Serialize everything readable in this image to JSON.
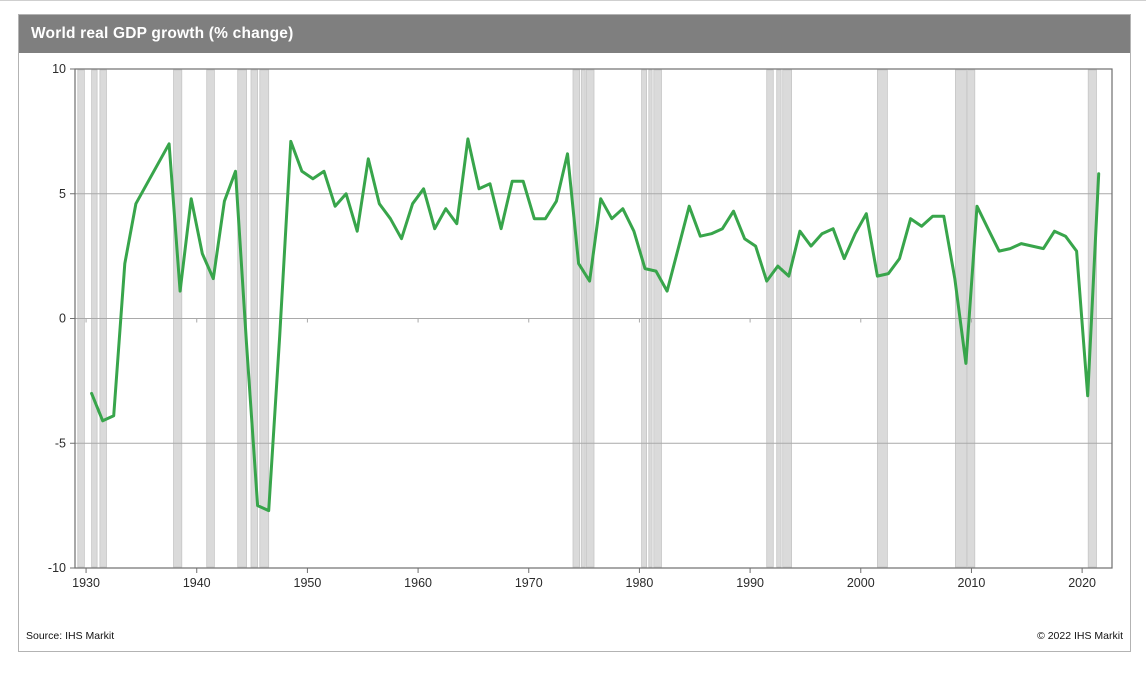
{
  "header": {
    "title": "World real GDP growth (% change)"
  },
  "footer": {
    "source": "Source:  IHS Markit",
    "copyright": "© 2022  IHS Markit"
  },
  "colors": {
    "titlebar_bg": "#7f7f7f",
    "title_text": "#ffffff",
    "line": "#38a54b",
    "recession_band_fill": "#dadada",
    "recession_band_edge": "#c6c6c6",
    "gridline": "#a9a9a9",
    "plot_border": "#6f6f6f",
    "axis_tick": "#6f6f6f",
    "axis_label": "#2b2b2b"
  },
  "chart_data": {
    "type": "line",
    "title": "World real GDP growth (% change)",
    "xlabel": "",
    "ylabel": "",
    "ylim": [
      -10,
      10
    ],
    "xlim": [
      1928.5,
      2022.2
    ],
    "grid": "horizontal",
    "legend_position": "none",
    "y_ticks": [
      10,
      5,
      0,
      -5,
      -10
    ],
    "x_ticks": [
      1930,
      1940,
      1950,
      1960,
      1970,
      1980,
      1990,
      2000,
      2010,
      2020
    ],
    "series": [
      {
        "name": "World real GDP growth (% change)",
        "years": [
          1930,
          1931,
          1932,
          1933,
          1934,
          1935,
          1936,
          1937,
          1938,
          1939,
          1940,
          1941,
          1942,
          1943,
          1944,
          1945,
          1946,
          1947,
          1948,
          1949,
          1950,
          1951,
          1952,
          1953,
          1954,
          1955,
          1956,
          1957,
          1958,
          1959,
          1960,
          1961,
          1962,
          1963,
          1964,
          1965,
          1966,
          1967,
          1968,
          1969,
          1970,
          1971,
          1972,
          1973,
          1974,
          1975,
          1976,
          1977,
          1978,
          1979,
          1980,
          1981,
          1982,
          1983,
          1984,
          1985,
          1986,
          1987,
          1988,
          1989,
          1990,
          1991,
          1992,
          1993,
          1994,
          1995,
          1996,
          1997,
          1998,
          1999,
          2000,
          2001,
          2002,
          2003,
          2004,
          2005,
          2006,
          2007,
          2008,
          2009,
          2010,
          2011,
          2012,
          2013,
          2014,
          2015,
          2016,
          2017,
          2018,
          2019,
          2020,
          2021
        ],
        "values": [
          -3.0,
          -4.1,
          -3.9,
          2.2,
          4.6,
          5.4,
          6.2,
          7.0,
          1.1,
          4.8,
          2.6,
          1.6,
          4.7,
          5.9,
          -1.0,
          -7.5,
          -7.7,
          -0.7,
          7.1,
          5.9,
          5.6,
          5.9,
          4.5,
          5.0,
          3.5,
          6.4,
          4.6,
          4.0,
          3.2,
          4.6,
          5.2,
          3.6,
          4.4,
          3.8,
          7.2,
          5.2,
          5.4,
          3.6,
          5.5,
          5.5,
          4.0,
          4.0,
          4.7,
          6.6,
          2.2,
          1.5,
          4.8,
          4.0,
          4.4,
          3.5,
          2.0,
          1.9,
          1.1,
          2.8,
          4.5,
          3.3,
          3.4,
          3.6,
          4.3,
          3.2,
          2.9,
          1.5,
          2.1,
          1.7,
          3.5,
          2.9,
          3.4,
          3.6,
          2.4,
          3.4,
          4.2,
          1.7,
          1.8,
          2.4,
          4.0,
          3.7,
          4.1,
          4.1,
          1.6,
          -1.8,
          4.5,
          3.6,
          2.7,
          2.8,
          3.0,
          2.9,
          2.8,
          3.5,
          3.3,
          2.7,
          -3.1,
          5.8
        ]
      }
    ],
    "recession_bands": [
      [
        1928.75,
        1929.35
      ],
      [
        1930.0,
        1930.5
      ],
      [
        1930.75,
        1931.35
      ],
      [
        1937.4,
        1938.15
      ],
      [
        1940.4,
        1941.1
      ],
      [
        1943.2,
        1944.0
      ],
      [
        1944.4,
        1945.0
      ],
      [
        1945.2,
        1946.0
      ],
      [
        1973.5,
        1974.1
      ],
      [
        1974.25,
        1974.6
      ],
      [
        1974.7,
        1975.4
      ],
      [
        1979.7,
        1980.15
      ],
      [
        1980.35,
        1980.65
      ],
      [
        1980.8,
        1981.5
      ],
      [
        1991.0,
        1991.6
      ],
      [
        1991.9,
        1992.3
      ],
      [
        1992.45,
        1993.25
      ],
      [
        2001.0,
        2001.9
      ],
      [
        2008.05,
        2009.05
      ],
      [
        2009.15,
        2009.8
      ],
      [
        2020.05,
        2020.8
      ]
    ]
  },
  "layout_note": "annual line with decade ticks on zero line and bottom axis"
}
